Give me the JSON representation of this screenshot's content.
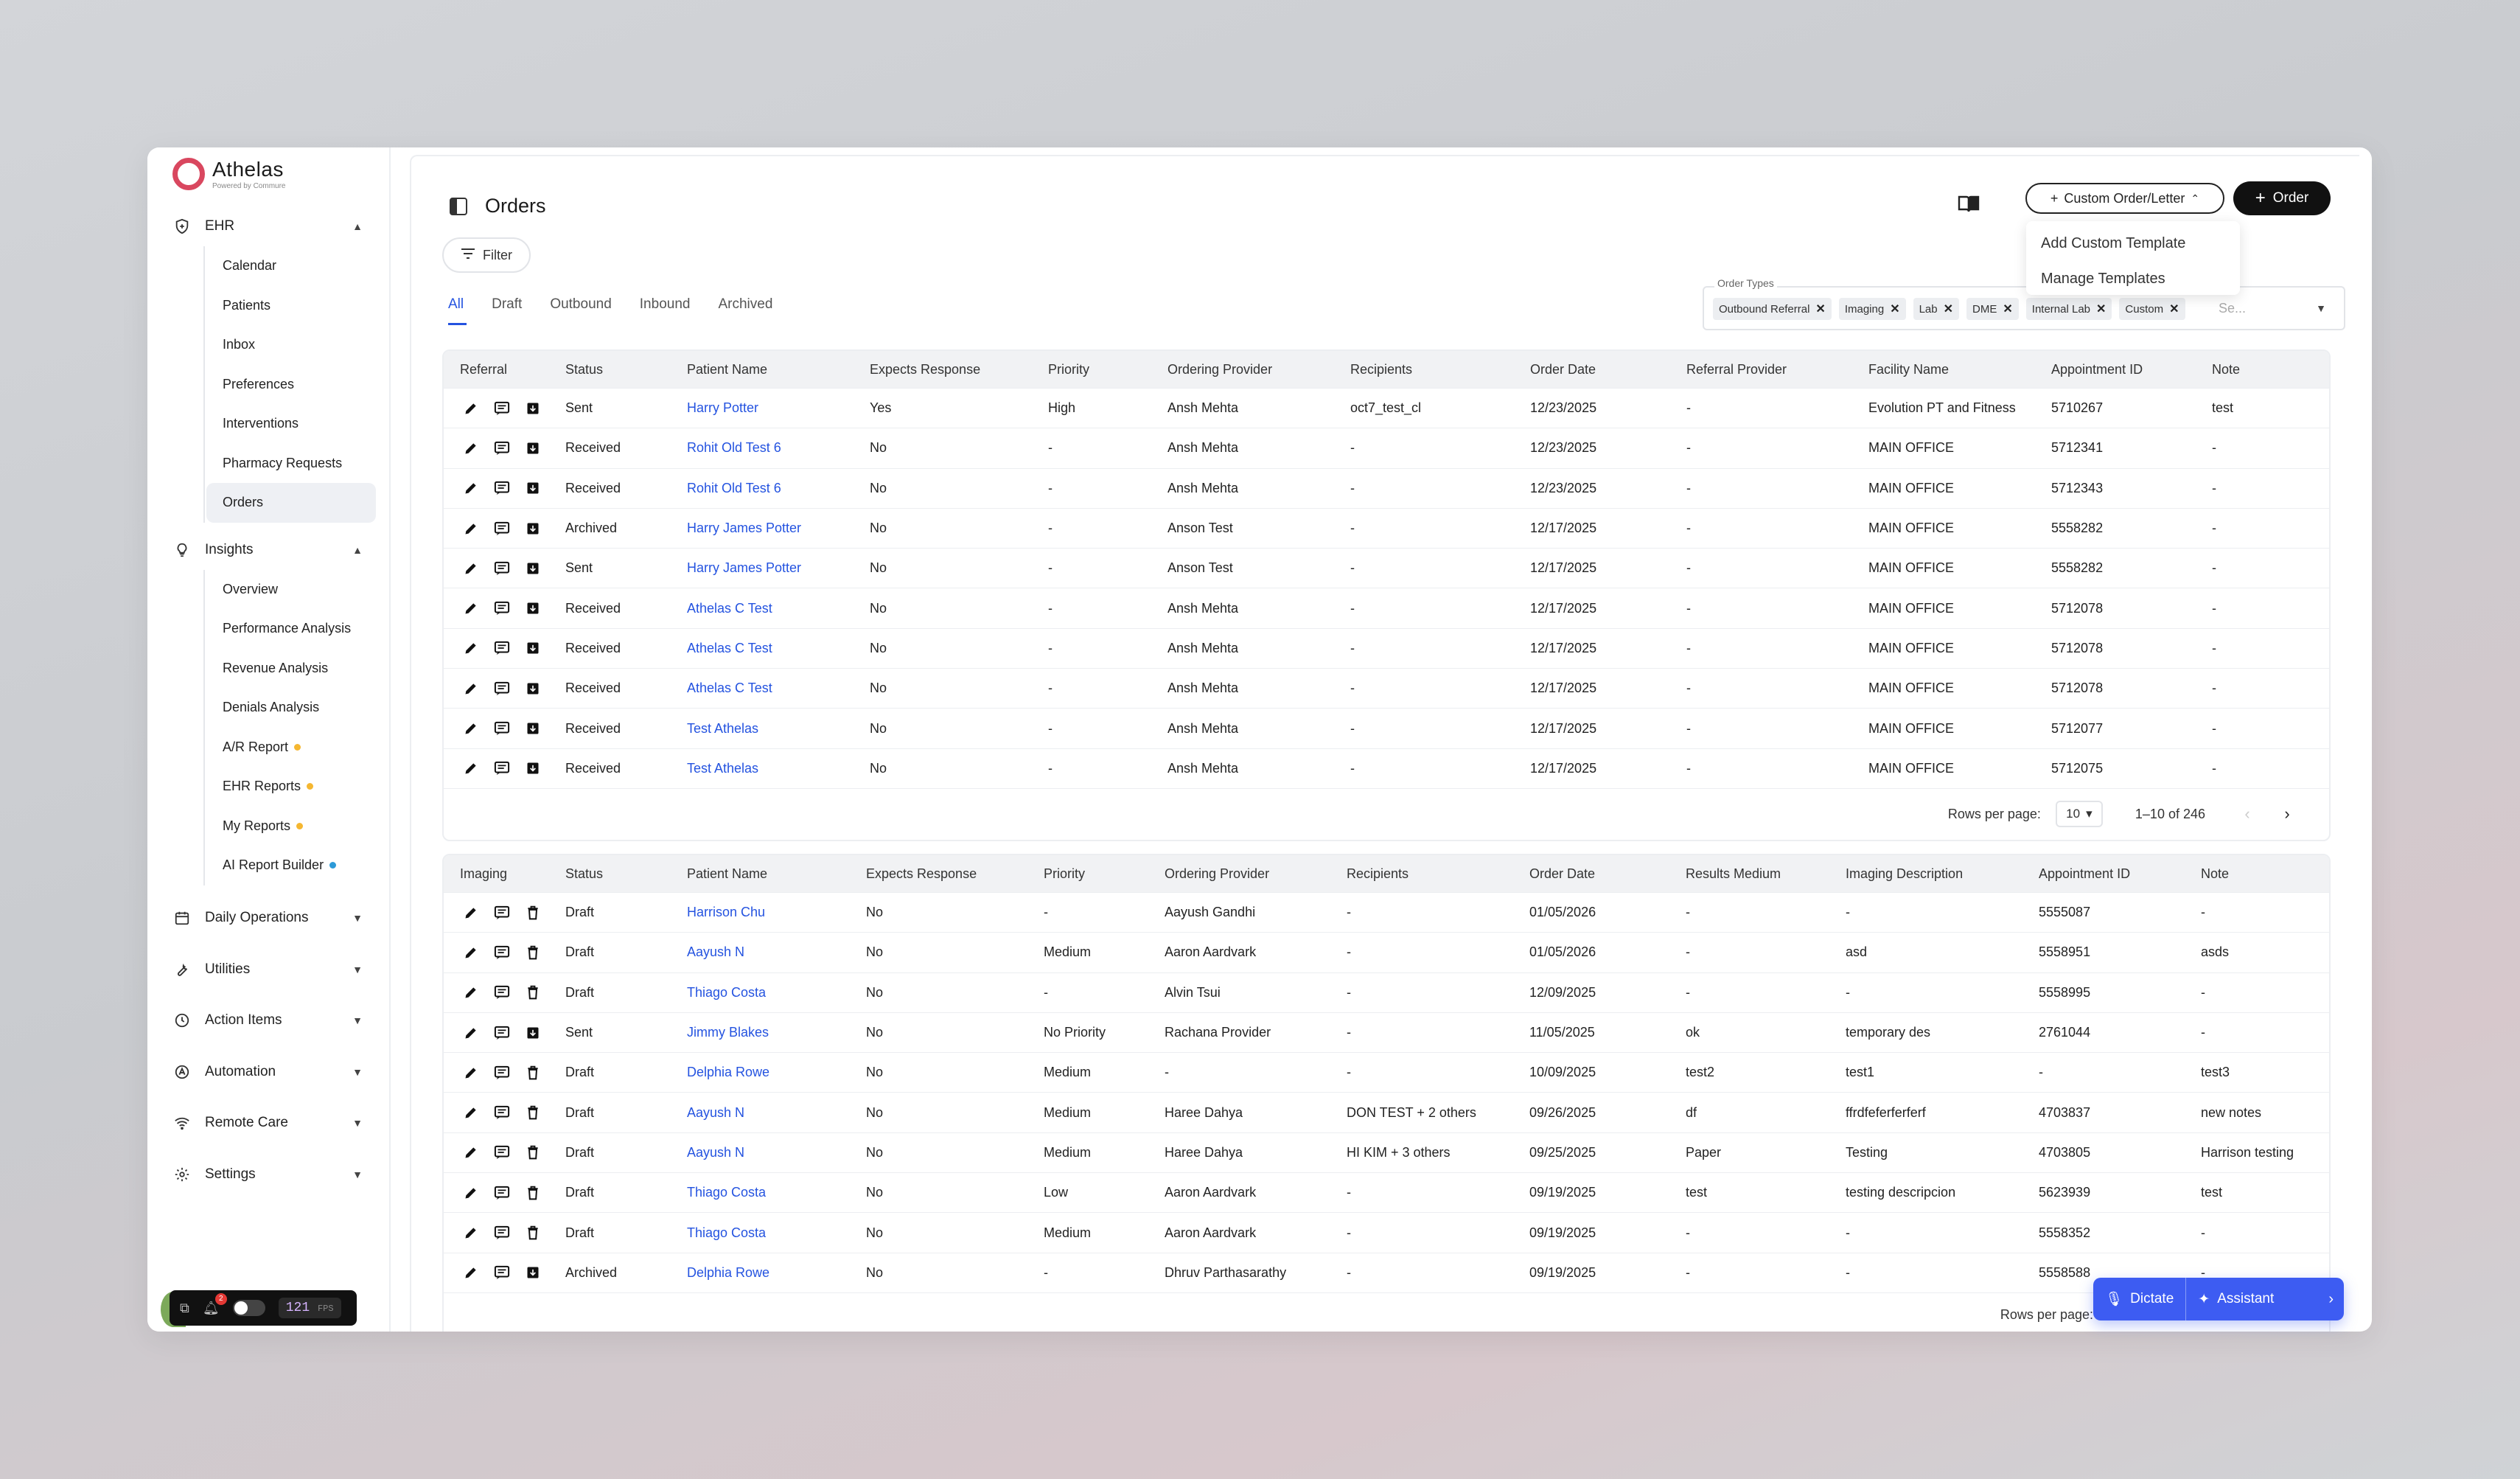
{
  "app": {
    "name": "Athelas",
    "tagline": "Powered by Commure"
  },
  "sidebar": {
    "ehr": {
      "label": "EHR",
      "items": [
        "Calendar",
        "Patients",
        "Inbox",
        "Preferences",
        "Interventions",
        "Pharmacy Requests",
        "Orders"
      ]
    },
    "insights": {
      "label": "Insights",
      "items": [
        {
          "label": "Overview"
        },
        {
          "label": "Performance Analysis"
        },
        {
          "label": "Revenue Analysis"
        },
        {
          "label": "Denials Analysis"
        },
        {
          "label": "A/R Report",
          "dot": "#f5b731"
        },
        {
          "label": "EHR Reports",
          "dot": "#f5b731"
        },
        {
          "label": "My Reports",
          "dot": "#f5b731"
        },
        {
          "label": "AI Report Builder",
          "dot": "#2d9ad8"
        }
      ]
    },
    "sections": [
      "Daily Operations",
      "Utilities",
      "Action Items",
      "Automation",
      "Remote Care",
      "Settings"
    ]
  },
  "devbar": {
    "badge": "2",
    "fps": "121",
    "fps_unit": "FPS"
  },
  "header": {
    "title": "Orders",
    "custom_button": "Custom Order/Letter",
    "order_button": "Order",
    "dropdown": [
      "Add Custom Template",
      "Manage Templates"
    ],
    "filter": "Filter"
  },
  "tabs": [
    "All",
    "Draft",
    "Outbound",
    "Inbound",
    "Archived"
  ],
  "order_types": {
    "label": "Order Types",
    "chips": [
      "Outbound Referral",
      "Imaging",
      "Lab",
      "DME",
      "Internal Lab",
      "Custom"
    ],
    "search_placeholder": "Se..."
  },
  "referral_table": {
    "headers": [
      "Referral",
      "Status",
      "Patient Name",
      "Expects Response",
      "Priority",
      "Ordering Provider",
      "Recipients",
      "Order Date",
      "Referral Provider",
      "Facility Name",
      "Appointment ID",
      "Note"
    ],
    "rows": [
      [
        "Sent",
        "Harry Potter",
        "Yes",
        "High",
        "Ansh Mehta",
        "oct7_test_cl",
        "12/23/2025",
        "-",
        "Evolution PT and Fitness",
        "5710267",
        "test"
      ],
      [
        "Received",
        "Rohit Old Test 6",
        "No",
        "-",
        "Ansh Mehta",
        "-",
        "12/23/2025",
        "-",
        "MAIN OFFICE",
        "5712341",
        "-"
      ],
      [
        "Received",
        "Rohit Old Test 6",
        "No",
        "-",
        "Ansh Mehta",
        "-",
        "12/23/2025",
        "-",
        "MAIN OFFICE",
        "5712343",
        "-"
      ],
      [
        "Archived",
        "Harry James Potter",
        "No",
        "-",
        "Anson Test",
        "-",
        "12/17/2025",
        "-",
        "MAIN OFFICE",
        "5558282",
        "-"
      ],
      [
        "Sent",
        "Harry James Potter",
        "No",
        "-",
        "Anson Test",
        "-",
        "12/17/2025",
        "-",
        "MAIN OFFICE",
        "5558282",
        "-"
      ],
      [
        "Received",
        "Athelas C Test",
        "No",
        "-",
        "Ansh Mehta",
        "-",
        "12/17/2025",
        "-",
        "MAIN OFFICE",
        "5712078",
        "-"
      ],
      [
        "Received",
        "Athelas C Test",
        "No",
        "-",
        "Ansh Mehta",
        "-",
        "12/17/2025",
        "-",
        "MAIN OFFICE",
        "5712078",
        "-"
      ],
      [
        "Received",
        "Athelas C Test",
        "No",
        "-",
        "Ansh Mehta",
        "-",
        "12/17/2025",
        "-",
        "MAIN OFFICE",
        "5712078",
        "-"
      ],
      [
        "Received",
        "Test Athelas",
        "No",
        "-",
        "Ansh Mehta",
        "-",
        "12/17/2025",
        "-",
        "MAIN OFFICE",
        "5712077",
        "-"
      ],
      [
        "Received",
        "Test Athelas",
        "No",
        "-",
        "Ansh Mehta",
        "-",
        "12/17/2025",
        "-",
        "MAIN OFFICE",
        "5712075",
        "-"
      ]
    ],
    "pager": {
      "rows_label": "Rows per page:",
      "rows_value": "10",
      "range": "1–10 of 246"
    }
  },
  "imaging_table": {
    "headers": [
      "Imaging",
      "Status",
      "Patient Name",
      "Expects Response",
      "Priority",
      "Ordering Provider",
      "Recipients",
      "Order Date",
      "Results Medium",
      "Imaging Description",
      "Appointment ID",
      "Note"
    ],
    "rows": [
      [
        "Draft",
        "Harrison Chu",
        "No",
        "-",
        "Aayush Gandhi",
        "-",
        "01/05/2026",
        "-",
        "-",
        "5555087",
        "-"
      ],
      [
        "Draft",
        "Aayush N",
        "No",
        "Medium",
        "Aaron Aardvark",
        "-",
        "01/05/2026",
        "-",
        "asd",
        "5558951",
        "asds"
      ],
      [
        "Draft",
        "Thiago Costa",
        "No",
        "-",
        "Alvin Tsui",
        "-",
        "12/09/2025",
        "-",
        "-",
        "5558995",
        "-"
      ],
      [
        "Sent",
        "Jimmy Blakes",
        "No",
        "No Priority",
        "Rachana Provider",
        "-",
        "11/05/2025",
        "ok",
        "temporary des",
        "2761044",
        "-"
      ],
      [
        "Draft",
        "Delphia Rowe",
        "No",
        "Medium",
        "-",
        "-",
        "10/09/2025",
        "test2",
        "test1",
        "-",
        "test3"
      ],
      [
        "Draft",
        "Aayush N",
        "No",
        "Medium",
        "Haree Dahya",
        "DON TEST + 2 others",
        "09/26/2025",
        "df",
        "ffrdfeferferferf",
        "4703837",
        "new notes"
      ],
      [
        "Draft",
        "Aayush N",
        "No",
        "Medium",
        "Haree Dahya",
        "HI KIM + 3 others",
        "09/25/2025",
        "Paper",
        "Testing",
        "4703805",
        "Harrison testing"
      ],
      [
        "Draft",
        "Thiago Costa",
        "No",
        "Low",
        "Aaron Aardvark",
        "-",
        "09/19/2025",
        "test",
        "testing descripcion",
        "5623939",
        "test"
      ],
      [
        "Draft",
        "Thiago Costa",
        "No",
        "Medium",
        "Aaron Aardvark",
        "-",
        "09/19/2025",
        "-",
        "-",
        "5558352",
        "-"
      ],
      [
        "Archived",
        "Delphia Rowe",
        "No",
        "-",
        "Dhruv Parthasarathy",
        "-",
        "09/19/2025",
        "-",
        "-",
        "5558588",
        "-"
      ]
    ],
    "note_dots": [
      false,
      false,
      false,
      false,
      true,
      true,
      false,
      true,
      false,
      true
    ],
    "pager": {
      "rows_label": "Rows per page:"
    }
  },
  "assistant": {
    "dictate": "Dictate",
    "assistant": "Assistant"
  }
}
